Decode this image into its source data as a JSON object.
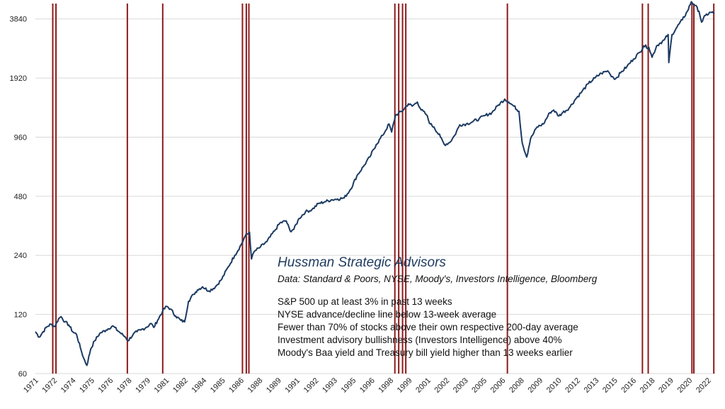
{
  "chart_data": {
    "type": "line",
    "title": "Hussman Strategic Advisors",
    "subtitle": "Data: Standard & Poors, NYSE, Moody's, Investors Intelligence, Bloomberg",
    "annotations": [
      "S&P 500 up at least 3% in past 13 weeks",
      "NYSE advance/decline line below 13-week average",
      "Fewer than 70% of stocks above their own respective  200-day average",
      "Investment advisory bullishness (Investors Intelligence)  above 40%",
      "Moody's Baa yield and Treasury bill yield higher than 13 weeks earlier"
    ],
    "y_scale": "log",
    "ylim": [
      60,
      4600
    ],
    "xlim": [
      1971.0,
      2023.85
    ],
    "yticks": [
      60,
      120,
      240,
      480,
      960,
      1920,
      3840
    ],
    "ytick_labels": [
      "60",
      "120",
      "240",
      "480",
      "960",
      "1920",
      "3840"
    ],
    "xtick_labels": [
      "1971",
      "1972",
      "1974",
      "1975",
      "1976",
      "1978",
      "1979",
      "1981",
      "1982",
      "1984",
      "1985",
      "1986",
      "1988",
      "1989",
      "1991",
      "1992",
      "1993",
      "1995",
      "1996",
      "1998",
      "1999",
      "2001",
      "2002",
      "2003",
      "2005",
      "2006",
      "2008",
      "2009",
      "2010",
      "2012",
      "2013",
      "2015",
      "2016",
      "2018",
      "2019",
      "2020",
      "2022"
    ],
    "grid": "horizontal",
    "colors": {
      "line": "#1b3a62",
      "signal": "#8b1a1a",
      "grid": "#d9d9d9"
    },
    "series": [
      {
        "x": [
          1971.0,
          1971.3,
          1971.6,
          1971.9,
          1972.2,
          1972.5,
          1972.8,
          1973.0,
          1973.3,
          1973.6,
          1973.9,
          1974.2,
          1974.5,
          1974.75,
          1975.0,
          1975.3,
          1975.6,
          1976.0,
          1976.5,
          1977.0,
          1977.5,
          1978.0,
          1978.2,
          1978.6,
          1978.9,
          1979.2,
          1979.6,
          1980.0,
          1980.2,
          1980.5,
          1980.9,
          1981.2,
          1981.5,
          1981.9,
          1982.3,
          1982.6,
          1982.9,
          1983.3,
          1983.6,
          1984.0,
          1984.5,
          1985.0,
          1985.5,
          1986.0,
          1986.5,
          1987.0,
          1987.3,
          1987.65,
          1987.8,
          1988.0,
          1988.5,
          1989.0,
          1989.6,
          1990.0,
          1990.5,
          1990.8,
          1991.1,
          1991.5,
          1992.0,
          1992.5,
          1993.0,
          1993.5,
          1994.0,
          1994.5,
          1995.0,
          1995.5,
          1996.0,
          1996.5,
          1997.0,
          1997.5,
          1998.0,
          1998.5,
          1998.7,
          1999.0,
          1999.5,
          2000.0,
          2000.3,
          2000.7,
          2001.0,
          2001.4,
          2001.7,
          2002.0,
          2002.5,
          2002.8,
          2003.2,
          2003.6,
          2004.0,
          2004.5,
          2005.0,
          2005.5,
          2006.0,
          2006.5,
          2007.0,
          2007.5,
          2007.8,
          2008.2,
          2008.6,
          2008.85,
          2009.2,
          2009.5,
          2010.0,
          2010.5,
          2011.0,
          2011.3,
          2011.7,
          2012.0,
          2012.5,
          2013.0,
          2013.5,
          2014.0,
          2014.5,
          2015.0,
          2015.5,
          2015.7,
          2016.1,
          2016.5,
          2017.0,
          2017.5,
          2018.0,
          2018.3,
          2018.7,
          2018.95,
          2019.3,
          2019.6,
          2019.9,
          2020.2,
          2020.25,
          2020.5,
          2020.9,
          2021.3,
          2021.7,
          2022.0,
          2022.3,
          2022.6,
          2022.8,
          2023.1,
          2023.5,
          2023.8
        ],
        "y": [
          98,
          92,
          98,
          104,
          107,
          104,
          114,
          117,
          110,
          106,
          98,
          95,
          81,
          72,
          66,
          80,
          88,
          96,
          100,
          105,
          98,
          92,
          88,
          95,
          98,
          100,
          103,
          108,
          103,
          112,
          125,
          132,
          128,
          118,
          112,
          110,
          140,
          152,
          160,
          166,
          158,
          166,
          182,
          210,
          240,
          272,
          300,
          315,
          230,
          250,
          265,
          282,
          320,
          350,
          360,
          320,
          326,
          370,
          400,
          410,
          440,
          450,
          460,
          465,
          470,
          520,
          610,
          680,
          760,
          880,
          980,
          1120,
          1020,
          1240,
          1300,
          1420,
          1380,
          1450,
          1320,
          1250,
          1120,
          1080,
          960,
          880,
          900,
          980,
          1110,
          1120,
          1150,
          1190,
          1240,
          1280,
          1400,
          1500,
          1450,
          1380,
          1300,
          900,
          760,
          940,
          1080,
          1120,
          1280,
          1320,
          1230,
          1280,
          1350,
          1500,
          1640,
          1800,
          1920,
          2030,
          2090,
          2000,
          1900,
          2040,
          2200,
          2400,
          2600,
          2800,
          2750,
          2450,
          2800,
          2900,
          3000,
          3200,
          2300,
          3200,
          3500,
          3800,
          4200,
          4700,
          4500,
          4200,
          3700,
          4000,
          4150,
          4100
        ]
      }
    ],
    "signals": [
      1972.35,
      1972.6,
      1978.15,
      1980.9,
      1987.1,
      1987.4,
      1987.6,
      1998.95,
      1999.25,
      1999.55,
      1999.8,
      2007.7,
      2018.2,
      2018.65,
      2022.05,
      2022.2,
      2023.75
    ]
  }
}
